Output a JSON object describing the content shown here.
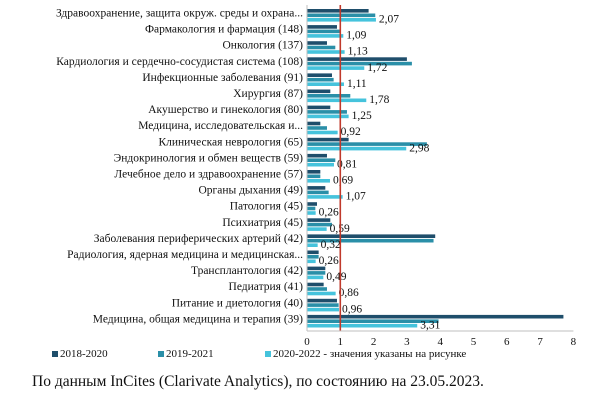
{
  "chart_data": {
    "type": "bar",
    "orientation": "horizontal",
    "categories": [
      "Здравоохранение, защита окруж. среды и охрана...",
      "Фармакология и фармация (148)",
      "Онкология (137)",
      "Кардиология и сердечно-сосудистая система (108)",
      "Инфекционные заболевания (91)",
      "Хирургия (87)",
      "Акушерство и гинекология (80)",
      "Медицина, исследовательская и...",
      "Клиническая неврология (65)",
      "Эндокринология и обмен веществ (59)",
      "Лечебное дело и здравоохранение (57)",
      "Органы дыхания (49)",
      "Патология (45)",
      "Психиатрия (45)",
      "Заболевания периферических артерий (42)",
      "Радиология, ядерная медицина и медицинская...",
      "Трансплантология (42)",
      "Педиатрия (41)",
      "Питание и диетология (40)",
      "Медицина, общая медицина и терапия (39)"
    ],
    "series": [
      {
        "name": "2018-2020",
        "color": "#1f4e6b",
        "values": [
          1.85,
          0.9,
          0.6,
          3.0,
          0.75,
          0.7,
          0.7,
          0.4,
          1.25,
          0.6,
          0.4,
          0.55,
          0.3,
          0.7,
          3.85,
          0.35,
          0.55,
          0.5,
          0.9,
          7.7
        ]
      },
      {
        "name": "2019-2021",
        "color": "#2a8fa8",
        "values": [
          2.05,
          1.0,
          0.85,
          3.15,
          0.8,
          1.3,
          1.2,
          0.6,
          3.6,
          0.85,
          0.4,
          0.65,
          0.25,
          0.75,
          3.8,
          0.35,
          0.55,
          0.6,
          0.95,
          3.95
        ]
      },
      {
        "name": "2020-2022 - значения указаны на рисунке",
        "color": "#45c3dc",
        "values": [
          2.07,
          1.09,
          1.13,
          1.72,
          1.11,
          1.78,
          1.25,
          0.92,
          2.98,
          0.81,
          0.69,
          1.07,
          0.26,
          0.59,
          0.32,
          0.26,
          0.49,
          0.86,
          0.96,
          3.31
        ]
      }
    ],
    "data_labels": [
      "2,07",
      "1,09",
      "1,13",
      "1,72",
      "1,11",
      "1,78",
      "1,25",
      "0,92",
      "2,98",
      "0,81",
      "0,69",
      "1,07",
      "0,26",
      "0,59",
      "0,32",
      "0,26",
      "0,49",
      "0,86",
      "0,96",
      "3,31"
    ],
    "xlim": [
      0,
      8
    ],
    "x_ticks": [
      "0",
      "1",
      "2",
      "3",
      "4",
      "5",
      "6",
      "7",
      "8"
    ],
    "reference_line": {
      "x": 1,
      "color": "#c0392b"
    },
    "grid": false,
    "legend_position": "bottom"
  },
  "footnote": "По данным InCites (Clarivate Analytics), по состоянию на 23.05.2023."
}
